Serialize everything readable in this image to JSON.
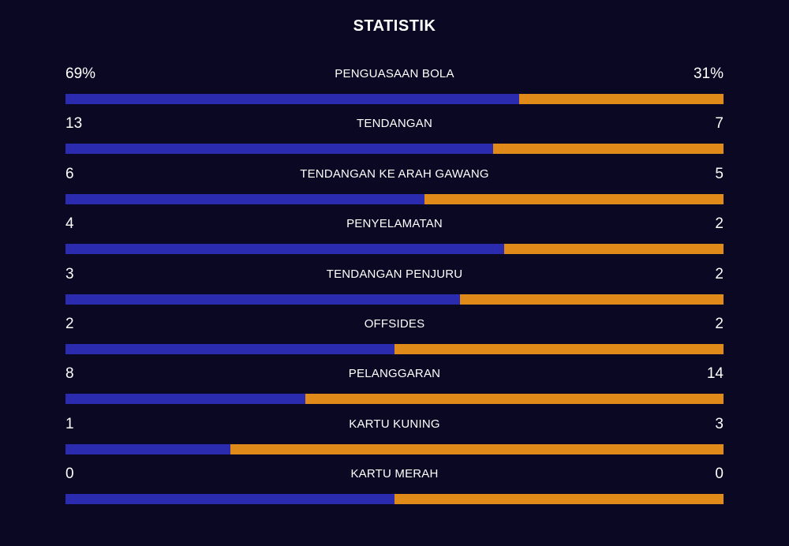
{
  "title": "STATISTIK",
  "colors": {
    "background": "#0a0822",
    "home": "#2b2bb0",
    "away": "#e08a1a",
    "text": "#ffffff"
  },
  "stats": [
    {
      "label": "PENGUASAAN BOLA",
      "home": "69%",
      "away": "31%",
      "home_share": 0.69
    },
    {
      "label": "TENDANGAN",
      "home": "13",
      "away": "7",
      "home_share": 0.65
    },
    {
      "label": "TENDANGAN KE ARAH GAWANG",
      "home": "6",
      "away": "5",
      "home_share": 0.545
    },
    {
      "label": "PENYELAMATAN",
      "home": "4",
      "away": "2",
      "home_share": 0.667
    },
    {
      "label": "TENDANGAN PENJURU",
      "home": "3",
      "away": "2",
      "home_share": 0.6
    },
    {
      "label": "OFFSIDES",
      "home": "2",
      "away": "2",
      "home_share": 0.5
    },
    {
      "label": "PELANGGARAN",
      "home": "8",
      "away": "14",
      "home_share": 0.364
    },
    {
      "label": "KARTU KUNING",
      "home": "1",
      "away": "3",
      "home_share": 0.25
    },
    {
      "label": "KARTU MERAH",
      "home": "0",
      "away": "0",
      "home_share": 0.5
    }
  ]
}
